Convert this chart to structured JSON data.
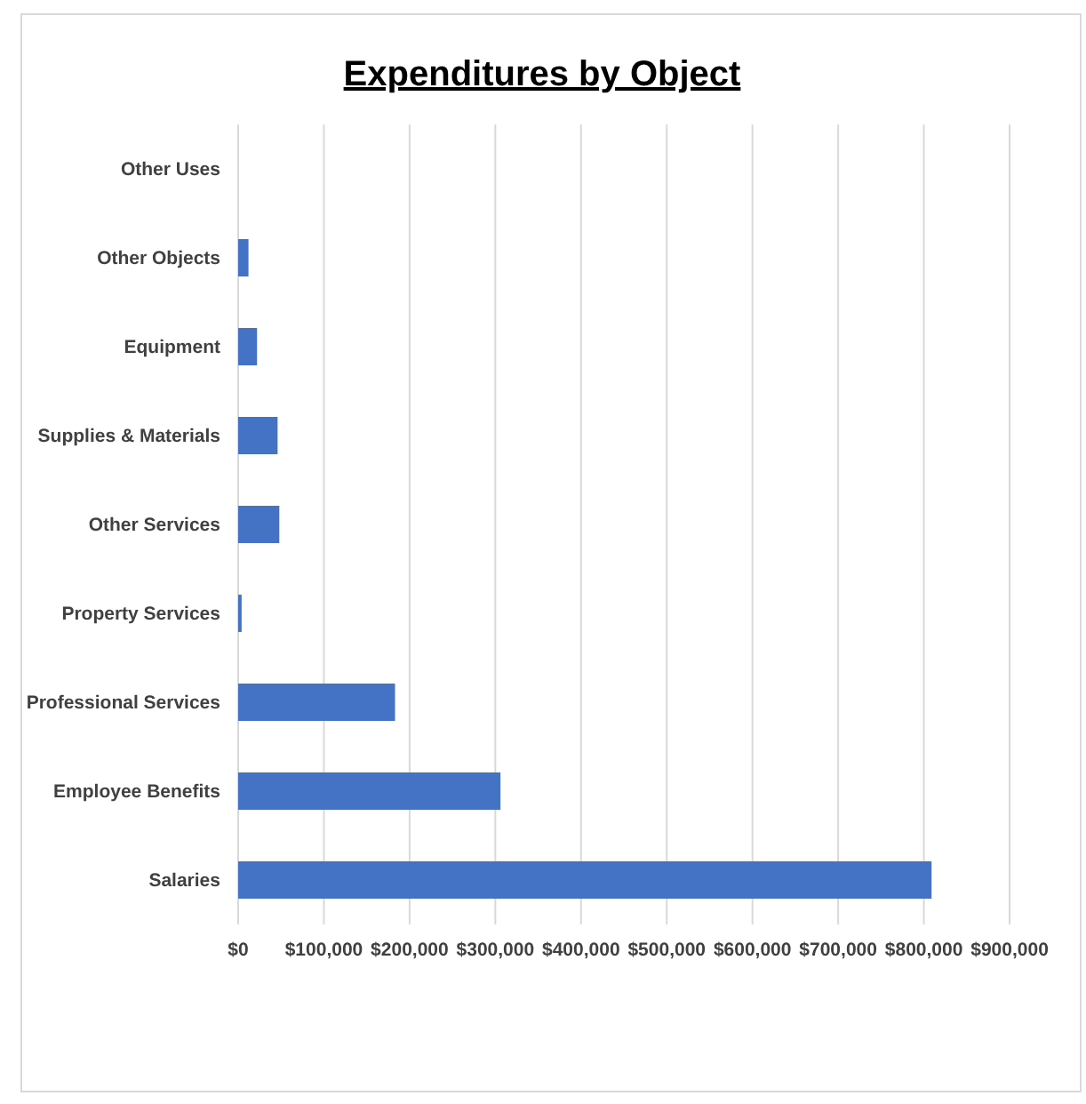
{
  "chart_data": {
    "type": "bar",
    "orientation": "horizontal",
    "title": "Expenditures by Object",
    "categories": [
      "Other Uses",
      "Other Objects",
      "Equipment",
      "Supplies & Materials",
      "Other Services",
      "Property Services",
      "Professional Services",
      "Employee Benefits",
      "Salaries"
    ],
    "values": [
      0,
      12000,
      22000,
      46000,
      48000,
      4000,
      183000,
      306000,
      809000
    ],
    "color": "#4472c4",
    "xlim": [
      0,
      900000
    ],
    "xticks": [
      {
        "value": 0,
        "label": "$0"
      },
      {
        "value": 100000,
        "label": "$100,000"
      },
      {
        "value": 200000,
        "label": "$200,000"
      },
      {
        "value": 300000,
        "label": "$300,000"
      },
      {
        "value": 400000,
        "label": "$400,000"
      },
      {
        "value": 500000,
        "label": "$500,000"
      },
      {
        "value": 600000,
        "label": "$600,000"
      },
      {
        "value": 700000,
        "label": "$700,000"
      },
      {
        "value": 800000,
        "label": "$800,000"
      },
      {
        "value": 900000,
        "label": "$900,000"
      }
    ],
    "grid": "x"
  }
}
